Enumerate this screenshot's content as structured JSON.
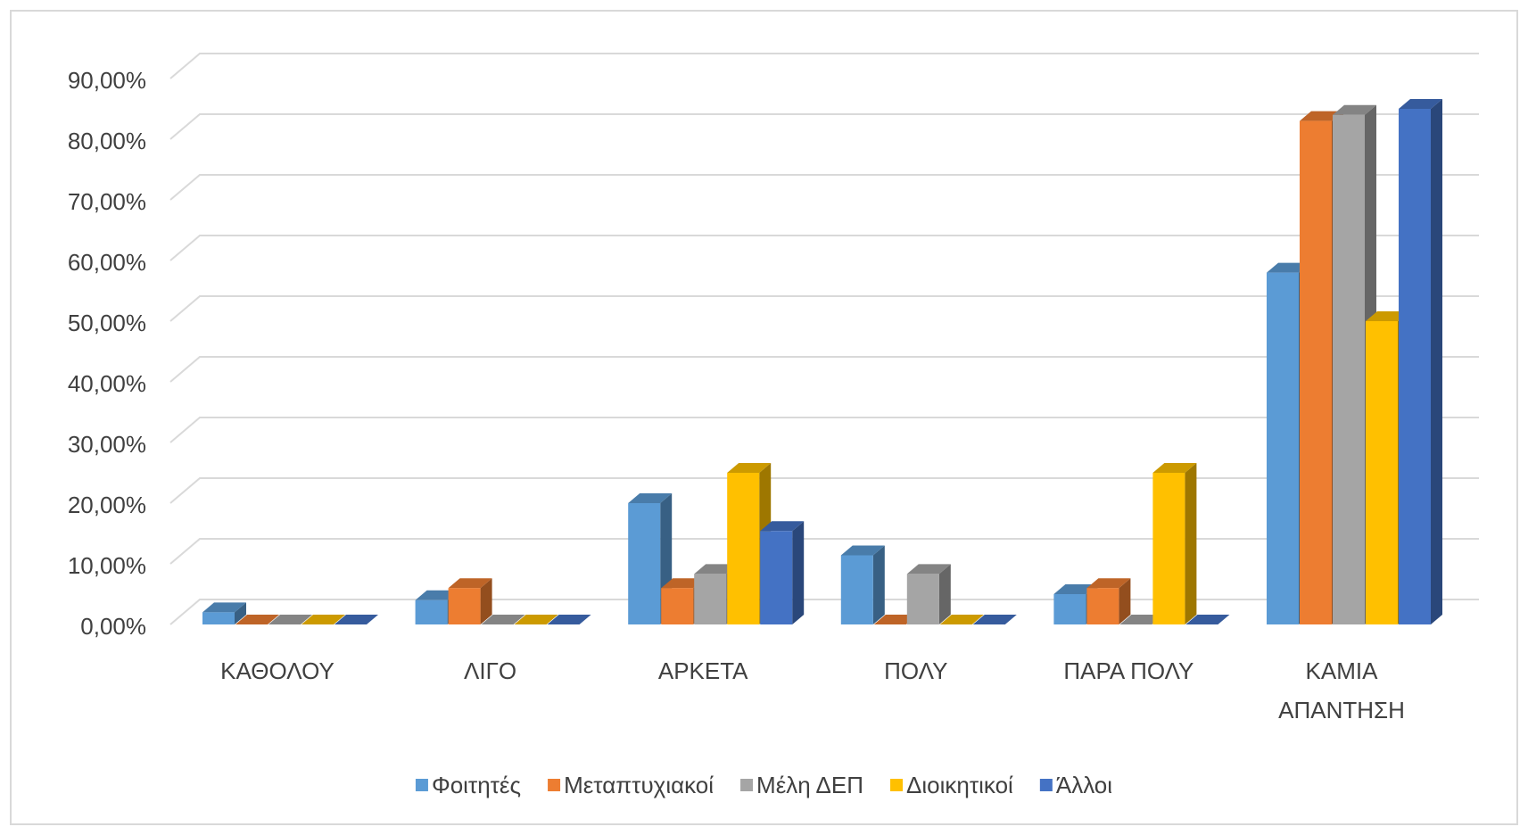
{
  "chart_data": {
    "type": "bar3d",
    "categories": [
      "ΚΑΘΟΛΟΥ",
      "ΛΙΓΟ",
      "ΑΡΚΕΤΑ",
      "ΠΟΛΥ",
      "ΠΑΡΑ ΠΟΛΥ",
      "ΚΑΜΙΑ ΑΠΑΝΤΗΣΗ"
    ],
    "series": [
      {
        "name": "Φοιτητές",
        "color": "#5b9bd5",
        "values": [
          2,
          4,
          20,
          11.4,
          5,
          58
        ]
      },
      {
        "name": "Μεταπτυχιακοί",
        "color": "#ed7d31",
        "values": [
          0,
          6,
          6,
          0,
          6,
          83
        ]
      },
      {
        "name": "Μέλη ΔΕΠ",
        "color": "#a5a5a5",
        "values": [
          0,
          0,
          8.33,
          8.33,
          0,
          84
        ]
      },
      {
        "name": "Διοικητικοί",
        "color": "#ffc000",
        "values": [
          0,
          0,
          25,
          0,
          25,
          50
        ]
      },
      {
        "name": "Άλλοι",
        "color": "#4472c4",
        "values": [
          0,
          0,
          15.4,
          0,
          0,
          85
        ]
      }
    ],
    "ylim": [
      0,
      90
    ],
    "yticks": [
      {
        "value": 0,
        "label": "0,00%"
      },
      {
        "value": 10,
        "label": "10,00%"
      },
      {
        "value": 20,
        "label": "20,00%"
      },
      {
        "value": 30,
        "label": "30,00%"
      },
      {
        "value": 40,
        "label": "40,00%"
      },
      {
        "value": 50,
        "label": "50,00%"
      },
      {
        "value": 60,
        "label": "60,00%"
      },
      {
        "value": 70,
        "label": "70,00%"
      },
      {
        "value": 80,
        "label": "80,00%"
      },
      {
        "value": 90,
        "label": "90,00%"
      }
    ],
    "grid": true,
    "legend": "bottom"
  }
}
